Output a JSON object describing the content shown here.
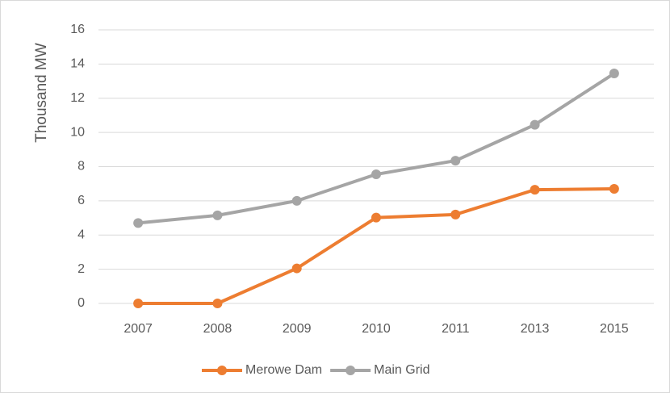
{
  "chart_data": {
    "type": "line",
    "y_label": "Thousand MW",
    "categories": [
      "2007",
      "2008",
      "2009",
      "2010",
      "2011",
      "2013",
      "2015"
    ],
    "series": [
      {
        "name": "Merowe Dam",
        "color": "#ed7d31",
        "values": [
          0,
          0,
          2.05,
          5.02,
          5.2,
          6.65,
          6.7
        ]
      },
      {
        "name": "Main Grid",
        "color": "#a5a5a5",
        "values": [
          4.7,
          5.15,
          6.0,
          7.55,
          8.35,
          10.45,
          13.45
        ]
      }
    ],
    "ylim": [
      0,
      16
    ],
    "yticks": [
      0,
      2,
      4,
      6,
      8,
      10,
      12,
      14,
      16
    ],
    "grid": true,
    "legend": "bottom"
  }
}
